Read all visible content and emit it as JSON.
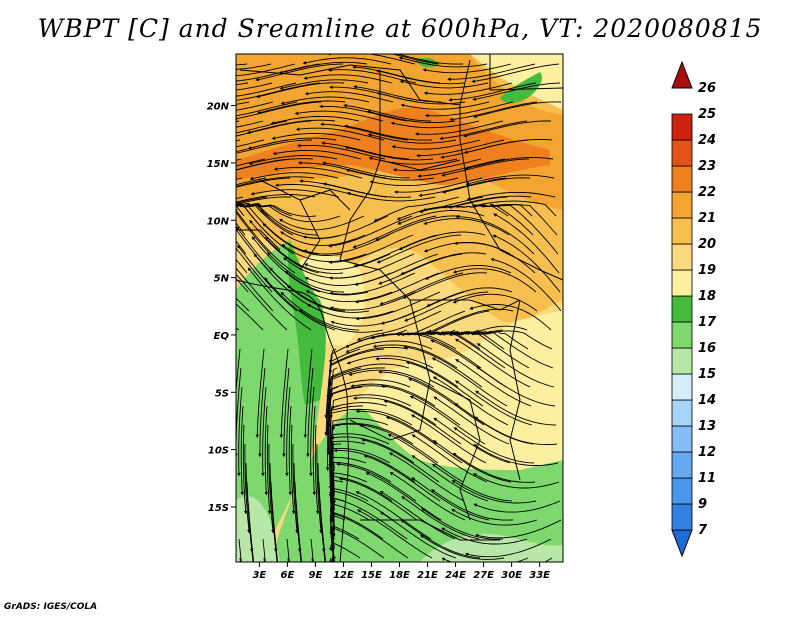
{
  "title": "WBPT [C] and Sreamline at 600hPa, VT: 2020080815",
  "credit": "GrADS: IGES/COLA",
  "lat_labels": [
    "20N",
    "15N",
    "10N",
    "5N",
    "EQ",
    "5S",
    "10S",
    "15S"
  ],
  "lat_values": [
    20,
    15,
    10,
    5,
    0,
    -5,
    -10,
    -15
  ],
  "lon_labels": [
    "3E",
    "6E",
    "9E",
    "12E",
    "15E",
    "18E",
    "21E",
    "24E",
    "27E",
    "30E",
    "33E"
  ],
  "lon_values": [
    3,
    6,
    9,
    12,
    15,
    18,
    21,
    24,
    27,
    30,
    33
  ],
  "map_extent": {
    "lon_min": 0.5,
    "lon_max": 35.5,
    "lat_min": -19.8,
    "lat_max": 24.5
  },
  "colorbar": {
    "labels": [
      "7",
      "9",
      "11",
      "12",
      "13",
      "14",
      "15",
      "16",
      "17",
      "18",
      "19",
      "20",
      "21",
      "22",
      "23",
      "24",
      "25",
      "26"
    ],
    "colors": [
      "#1e6ad8",
      "#3280e0",
      "#4a96ea",
      "#64aaf0",
      "#82bef5",
      "#a8d4f8",
      "#d6eefb",
      "#b8e8a8",
      "#7dd86e",
      "#44bb3c",
      "#fcf0a0",
      "#fbd97d",
      "#f7bf50",
      "#f4a430",
      "#ee8020",
      "#e25418",
      "#cc2210",
      "#a80d0d"
    ]
  },
  "field_colors": {
    "t16": "#b8e8a8",
    "t17": "#7dd86e",
    "t18": "#44bb3c",
    "t19": "#fcf0a0",
    "t20": "#fbd97d",
    "t21": "#f7bf50",
    "t22": "#f4a430",
    "t23": "#ee8020"
  }
}
